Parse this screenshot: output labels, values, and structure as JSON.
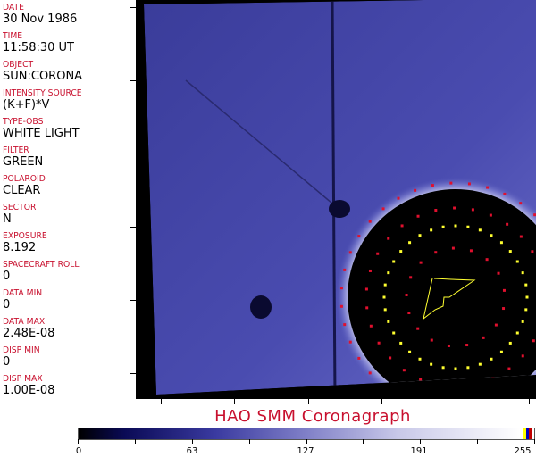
{
  "fields": [
    {
      "label": "DATE",
      "value": "30 Nov 1986"
    },
    {
      "label": "TIME",
      "value": "11:58:30 UT"
    },
    {
      "label": "OBJECT",
      "value": "SUN:CORONA"
    },
    {
      "label": "INTENSITY SOURCE",
      "value": "(K+F)*V"
    },
    {
      "label": "TYPE-OBS",
      "value": "WHITE LIGHT"
    },
    {
      "label": "FILTER",
      "value": "GREEN"
    },
    {
      "label": "POLAROID",
      "value": "CLEAR"
    },
    {
      "label": "SECTOR",
      "value": "N"
    },
    {
      "label": "EXPOSURE",
      "value": "8.192"
    },
    {
      "label": "SPACECRAFT ROLL",
      "value": "0"
    },
    {
      "label": "DATA MIN",
      "value": "0"
    },
    {
      "label": "DATA MAX",
      "value": "2.48E-08"
    },
    {
      "label": "DISP MIN",
      "value": "0"
    },
    {
      "label": "DISP MAX",
      "value": "1.00E-08"
    }
  ],
  "title": "HAO   SMM  Coronagraph",
  "colorbar": {
    "ticks": [
      "0",
      "63",
      "127",
      "191",
      "255"
    ],
    "range": [
      0,
      255
    ],
    "end_colors": [
      "#ffff00",
      "#0000c0",
      "#c00000"
    ]
  },
  "colors": {
    "label": "#c8102e",
    "marker_red": "#e0102e",
    "marker_yellow": "#ffff30"
  }
}
